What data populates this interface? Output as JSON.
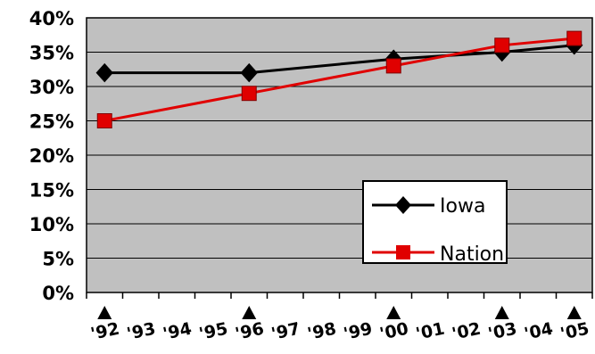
{
  "chart_data": {
    "type": "line",
    "x": [
      "'92",
      "'93",
      "'94",
      "'95",
      "'96",
      "'97",
      "'98",
      "'99",
      "'00",
      "'01",
      "'02",
      "'03",
      "'04",
      "'05"
    ],
    "y_ticks": [
      "0%",
      "5%",
      "10%",
      "15%",
      "20%",
      "25%",
      "30%",
      "35%",
      "40%"
    ],
    "ylim": [
      0,
      40
    ],
    "series": [
      {
        "name": "Iowa",
        "color": "#000000",
        "marker": "diamond",
        "points": [
          [
            "'92",
            32
          ],
          [
            "'96",
            32
          ],
          [
            "'00",
            34
          ],
          [
            "'03",
            35
          ],
          [
            "'05",
            36
          ]
        ]
      },
      {
        "name": "Nation",
        "color": "#e00000",
        "marker": "square",
        "points": [
          [
            "'92",
            25
          ],
          [
            "'96",
            29
          ],
          [
            "'00",
            33
          ],
          [
            "'03",
            36
          ],
          [
            "'05",
            37
          ]
        ]
      }
    ],
    "highlighted_years": [
      "'92",
      "'96",
      "'00",
      "'03",
      "'05"
    ],
    "grid": true,
    "plot_background": "#c0c0c0",
    "legend_position": "bottom-right"
  }
}
